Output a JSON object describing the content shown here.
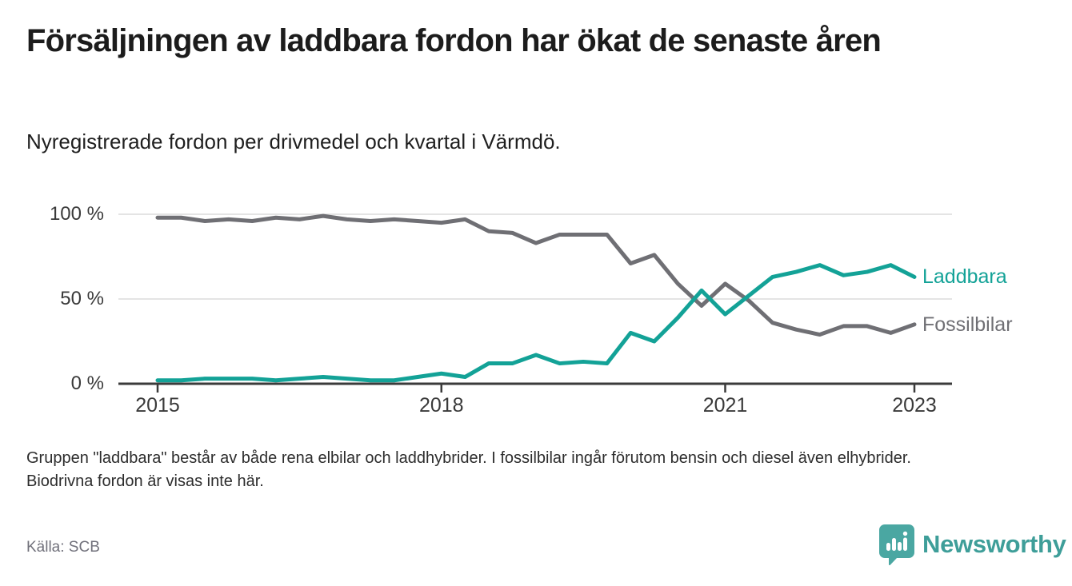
{
  "header": {
    "title": "Försäljningen av laddbara fordon har ökat de senaste åren",
    "subtitle": "Nyregistrerade fordon per drivmedel och kvartal i Värmdö."
  },
  "chart_data": {
    "type": "line",
    "x": [
      "2015Q1",
      "2015Q2",
      "2015Q3",
      "2015Q4",
      "2016Q1",
      "2016Q2",
      "2016Q3",
      "2016Q4",
      "2017Q1",
      "2017Q2",
      "2017Q3",
      "2017Q4",
      "2018Q1",
      "2018Q2",
      "2018Q3",
      "2018Q4",
      "2019Q1",
      "2019Q2",
      "2019Q3",
      "2019Q4",
      "2020Q1",
      "2020Q2",
      "2020Q3",
      "2020Q4",
      "2021Q1",
      "2021Q2",
      "2021Q3",
      "2021Q4",
      "2022Q1",
      "2022Q2",
      "2022Q3",
      "2022Q4",
      "2023Q1"
    ],
    "series": [
      {
        "name": "Laddbara",
        "color": "#13a297",
        "values": [
          2,
          2,
          3,
          3,
          3,
          2,
          3,
          4,
          3,
          2,
          2,
          4,
          6,
          4,
          12,
          12,
          17,
          12,
          13,
          12,
          30,
          25,
          39,
          55,
          41,
          52,
          63,
          66,
          70,
          64,
          66,
          70,
          63
        ]
      },
      {
        "name": "Fossilbilar",
        "color": "#6f6f74",
        "values": [
          98,
          98,
          96,
          97,
          96,
          98,
          97,
          99,
          97,
          96,
          97,
          96,
          95,
          97,
          90,
          89,
          83,
          88,
          88,
          88,
          71,
          76,
          59,
          46,
          59,
          49,
          36,
          32,
          29,
          34,
          34,
          30,
          35
        ]
      }
    ],
    "y_ticks": [
      {
        "label": "100 %",
        "value": 100
      },
      {
        "label": "50 %",
        "value": 50
      },
      {
        "label": "0 %",
        "value": 0
      }
    ],
    "x_ticks": [
      {
        "label": "2015",
        "index": 0
      },
      {
        "label": "2018",
        "index": 12
      },
      {
        "label": "2021",
        "index": 24
      },
      {
        "label": "2023",
        "index": 32
      }
    ],
    "ylim": [
      0,
      100
    ],
    "grid": true,
    "legend_position": "line-end-labels",
    "ylabel": "",
    "xlabel": ""
  },
  "footer": {
    "note": "Gruppen \"laddbara\" består av både rena elbilar och laddhybrider. I fossilbilar ingår förutom bensin och diesel även elhybrider. Biodrivna fordon är visas inte här.",
    "source": "Källa: SCB",
    "brand": "Newsworthy"
  },
  "colors": {
    "accent_teal": "#13a297",
    "line_gray": "#6f6f74",
    "axis": "#3b3b3b",
    "gridline": "#dcdcdc",
    "brand_teal": "#4aa7a2"
  }
}
